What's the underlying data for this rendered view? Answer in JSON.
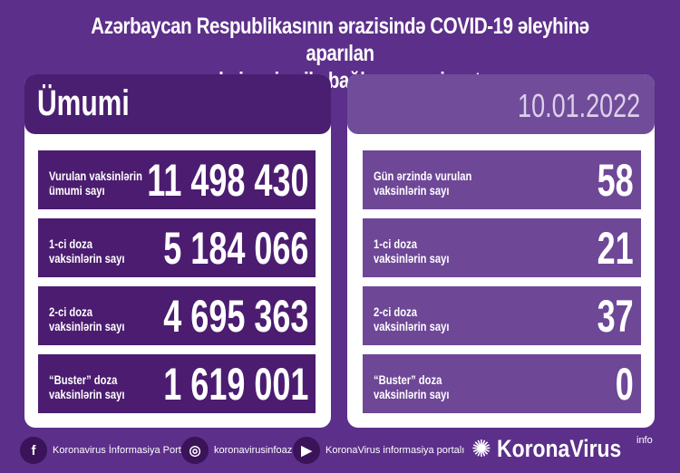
{
  "title": {
    "line1": "Azərbaycan Respublikasının ərazisində COVID-19 əleyhinə aparılan",
    "line2": "vaksinasiya ilə bağlı son vəziyyət"
  },
  "left": {
    "header": "Ümumi",
    "rows": [
      {
        "label1": "Vurulan vaksinlərin",
        "label2": "ümumi sayı",
        "value": "11 498 430"
      },
      {
        "label1": "1-ci doza",
        "label2": "vaksinlərin sayı",
        "value": "5 184 066"
      },
      {
        "label1": "2-ci doza",
        "label2": "vaksinlərin sayı",
        "value": "4 695 363"
      },
      {
        "label1": "“Buster” doza",
        "label2": "vaksinlərin sayı",
        "value": "1 619 001"
      }
    ]
  },
  "right": {
    "header": "10.01.2022",
    "rows": [
      {
        "label1": "Gün ərzində vurulan",
        "label2": "vaksinlərin sayı",
        "value": "58"
      },
      {
        "label1": "1-ci doza",
        "label2": "vaksinlərin sayı",
        "value": "21"
      },
      {
        "label1": "2-ci doza",
        "label2": "vaksinlərin sayı",
        "value": "37"
      },
      {
        "label1": "“Buster” doza",
        "label2": "vaksinlərin sayı",
        "value": "0"
      }
    ]
  },
  "footer": {
    "facebook": "Koronavirus İnformasiya Portalı",
    "instagram": "koronavirusinfoaz",
    "youtube": "KoronaVirus informasiya portalı",
    "brand": "KoronaVirus",
    "brand_sup": "info",
    "icons": {
      "facebook": "facebook-icon",
      "instagram": "instagram-icon",
      "youtube": "youtube-icon"
    }
  },
  "colors": {
    "background": "#5c2f8a",
    "left_rows": "#4b1c70",
    "right_rows": "#6e4797"
  }
}
